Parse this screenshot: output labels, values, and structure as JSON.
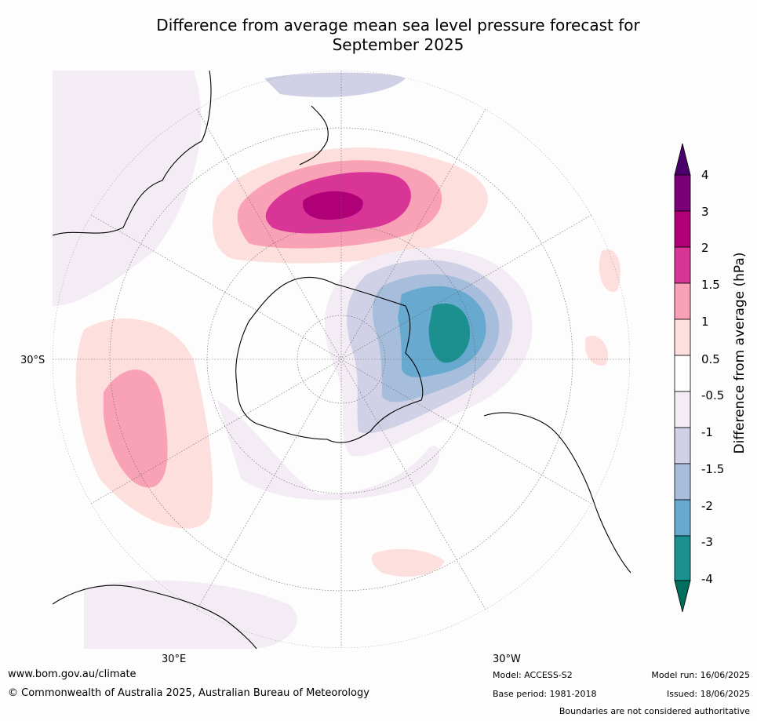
{
  "title_line1": "Difference from average mean sea level pressure forecast for",
  "title_line2": "September 2025",
  "map_labels": {
    "lat_30s": "30°S",
    "lon_30e": "30°E",
    "lon_30w": "30°W"
  },
  "colorbar": {
    "label": "Difference from average (hPa)",
    "ticks": [
      "4",
      "3",
      "2",
      "1.5",
      "1",
      "0.5",
      "-0.5",
      "-1",
      "-1.5",
      "-2",
      "-3",
      "-4"
    ],
    "colors": [
      "#790077",
      "#b00078",
      "#d93596",
      "#f9a1b7",
      "#fddfdd",
      "#ffffff",
      "#f3ecf4",
      "#d0d1e6",
      "#a6bddb",
      "#67a9cf",
      "#1c8f8f",
      "#006e5c"
    ],
    "top_extend_color": "#4a006a",
    "bottom_extend_color": "#006e5c"
  },
  "footer": {
    "website": "www.bom.gov.au/climate",
    "copyright": "© Commonwealth of Australia 2025, Australian Bureau of Meteorology",
    "model": "Model: ACCESS-S2",
    "base_period": "Base period: 1981-2018",
    "model_run": "Model run: 16/06/2025",
    "issued": "Issued: 18/06/2025",
    "disclaimer": "Boundaries are not considered authoritative"
  }
}
